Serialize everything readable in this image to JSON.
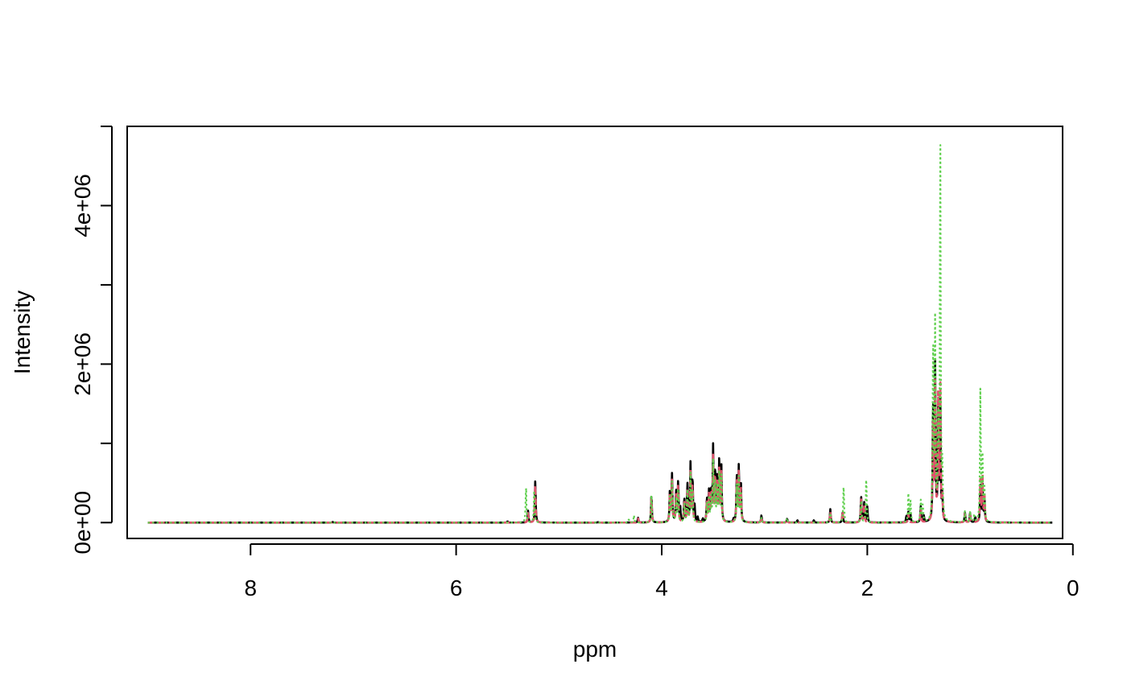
{
  "chart_data": {
    "type": "line",
    "title": "",
    "xlabel": "ppm",
    "ylabel": "Intensity",
    "x_reversed": true,
    "xlim": [
      9.2,
      0.1
    ],
    "ylim": [
      -200000,
      5000000
    ],
    "x_ticks": [
      8,
      6,
      4,
      2,
      0
    ],
    "x_tick_labels": [
      "8",
      "6",
      "4",
      "2",
      "0"
    ],
    "y_ticks": [
      0,
      1000000,
      2000000,
      3000000,
      4000000,
      5000000
    ],
    "y_tick_labels": [
      "0e+00",
      "",
      "2e+06",
      "",
      "4e+06",
      ""
    ],
    "grid": false,
    "legend": "none",
    "baseline_range": [
      9.0,
      0.2
    ],
    "series": [
      {
        "color": "#000000",
        "style": "solid",
        "peaks": [
          [
            7.2,
            8000
          ],
          [
            5.5,
            15000
          ],
          [
            5.3,
            150000
          ],
          [
            5.23,
            530000
          ],
          [
            4.62,
            6000
          ],
          [
            4.23,
            60000
          ],
          [
            4.1,
            350000
          ],
          [
            3.92,
            420000
          ],
          [
            3.9,
            600000
          ],
          [
            3.86,
            380000
          ],
          [
            3.84,
            510000
          ],
          [
            3.82,
            180000
          ],
          [
            3.78,
            300000
          ],
          [
            3.75,
            480000
          ],
          [
            3.72,
            730000
          ],
          [
            3.7,
            550000
          ],
          [
            3.68,
            200000
          ],
          [
            3.65,
            60000
          ],
          [
            3.6,
            40000
          ],
          [
            3.56,
            300000
          ],
          [
            3.54,
            380000
          ],
          [
            3.52,
            400000
          ],
          [
            3.5,
            930000
          ],
          [
            3.48,
            650000
          ],
          [
            3.46,
            520000
          ],
          [
            3.44,
            800000
          ],
          [
            3.42,
            700000
          ],
          [
            3.3,
            40000
          ],
          [
            3.27,
            580000
          ],
          [
            3.25,
            700000
          ],
          [
            3.23,
            500000
          ],
          [
            3.03,
            90000
          ],
          [
            2.78,
            50000
          ],
          [
            2.68,
            30000
          ],
          [
            2.52,
            30000
          ],
          [
            2.36,
            170000
          ],
          [
            2.24,
            140000
          ],
          [
            2.06,
            330000
          ],
          [
            2.03,
            250000
          ],
          [
            2.0,
            200000
          ],
          [
            1.62,
            80000
          ],
          [
            1.6,
            130000
          ],
          [
            1.58,
            100000
          ],
          [
            1.48,
            200000
          ],
          [
            1.45,
            80000
          ],
          [
            1.36,
            1500000
          ],
          [
            1.34,
            1950000
          ],
          [
            1.31,
            1400000
          ],
          [
            1.29,
            1550000
          ],
          [
            1.27,
            300000
          ],
          [
            1.05,
            130000
          ],
          [
            1.0,
            120000
          ],
          [
            0.95,
            70000
          ],
          [
            0.9,
            450000
          ],
          [
            0.88,
            520000
          ],
          [
            0.86,
            300000
          ]
        ]
      },
      {
        "color": "#DF536B",
        "style": "dashed",
        "peaks": [
          [
            7.2,
            6000
          ],
          [
            5.3,
            120000
          ],
          [
            5.23,
            480000
          ],
          [
            4.23,
            50000
          ],
          [
            4.1,
            320000
          ],
          [
            3.92,
            380000
          ],
          [
            3.9,
            520000
          ],
          [
            3.86,
            330000
          ],
          [
            3.84,
            460000
          ],
          [
            3.78,
            260000
          ],
          [
            3.75,
            420000
          ],
          [
            3.72,
            650000
          ],
          [
            3.7,
            480000
          ],
          [
            3.56,
            280000
          ],
          [
            3.54,
            330000
          ],
          [
            3.52,
            350000
          ],
          [
            3.5,
            820000
          ],
          [
            3.48,
            560000
          ],
          [
            3.46,
            450000
          ],
          [
            3.44,
            700000
          ],
          [
            3.42,
            620000
          ],
          [
            3.27,
            520000
          ],
          [
            3.25,
            620000
          ],
          [
            3.23,
            440000
          ],
          [
            3.03,
            70000
          ],
          [
            2.78,
            40000
          ],
          [
            2.36,
            140000
          ],
          [
            2.24,
            160000
          ],
          [
            2.06,
            300000
          ],
          [
            2.03,
            230000
          ],
          [
            1.6,
            110000
          ],
          [
            1.48,
            170000
          ],
          [
            1.36,
            1300000
          ],
          [
            1.34,
            1700000
          ],
          [
            1.31,
            1600000
          ],
          [
            1.29,
            1750000
          ],
          [
            1.27,
            280000
          ],
          [
            1.05,
            110000
          ],
          [
            1.0,
            100000
          ],
          [
            0.9,
            520000
          ],
          [
            0.88,
            640000
          ],
          [
            0.86,
            350000
          ]
        ]
      },
      {
        "color": "#61D04F",
        "style": "dotted",
        "peaks": [
          [
            7.2,
            5000
          ],
          [
            5.32,
            470000
          ],
          [
            5.24,
            430000
          ],
          [
            4.32,
            40000
          ],
          [
            4.27,
            90000
          ],
          [
            4.1,
            370000
          ],
          [
            3.92,
            350000
          ],
          [
            3.9,
            500000
          ],
          [
            3.86,
            300000
          ],
          [
            3.84,
            420000
          ],
          [
            3.78,
            240000
          ],
          [
            3.75,
            400000
          ],
          [
            3.72,
            600000
          ],
          [
            3.7,
            420000
          ],
          [
            3.56,
            250000
          ],
          [
            3.54,
            300000
          ],
          [
            3.52,
            320000
          ],
          [
            3.5,
            750000
          ],
          [
            3.48,
            520000
          ],
          [
            3.46,
            420000
          ],
          [
            3.44,
            650000
          ],
          [
            3.42,
            580000
          ],
          [
            3.27,
            480000
          ],
          [
            3.25,
            560000
          ],
          [
            3.23,
            400000
          ],
          [
            3.03,
            60000
          ],
          [
            2.78,
            60000
          ],
          [
            2.36,
            120000
          ],
          [
            2.23,
            480000
          ],
          [
            2.06,
            280000
          ],
          [
            2.01,
            580000
          ],
          [
            1.6,
            360000
          ],
          [
            1.58,
            280000
          ],
          [
            1.48,
            270000
          ],
          [
            1.46,
            220000
          ],
          [
            1.36,
            2250000
          ],
          [
            1.34,
            2480000
          ],
          [
            1.31,
            1200000
          ],
          [
            1.29,
            4880000
          ],
          [
            1.27,
            600000
          ],
          [
            1.05,
            140000
          ],
          [
            1.0,
            140000
          ],
          [
            0.96,
            100000
          ],
          [
            0.9,
            1650000
          ],
          [
            0.88,
            900000
          ],
          [
            0.86,
            400000
          ]
        ]
      }
    ]
  }
}
